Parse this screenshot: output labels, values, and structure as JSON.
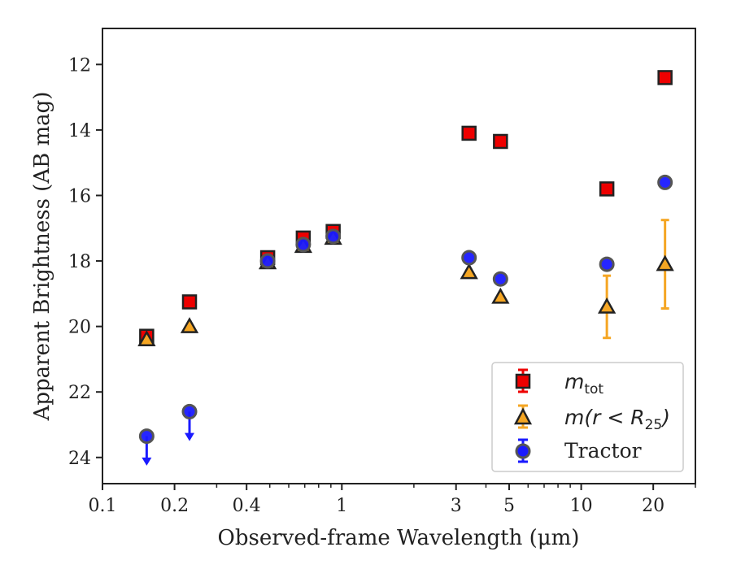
{
  "chart_data": {
    "type": "scatter",
    "xlabel": "Observed-frame Wavelength (μm)",
    "ylabel": "Apparent Brightness (AB mag)",
    "xscale": "log",
    "yaxis_inverted": true,
    "xlim": [
      0.1,
      30
    ],
    "ylim": [
      24.8,
      10.9
    ],
    "x_ticks": [
      {
        "value": 0.1,
        "label": "0.1"
      },
      {
        "value": 0.2,
        "label": "0.2"
      },
      {
        "value": 0.4,
        "label": "0.4"
      },
      {
        "value": 1,
        "label": "1"
      },
      {
        "value": 3,
        "label": "3"
      },
      {
        "value": 5,
        "label": "5"
      },
      {
        "value": 10,
        "label": "10"
      },
      {
        "value": 20,
        "label": "20"
      }
    ],
    "y_ticks": [
      {
        "value": 12,
        "label": "12"
      },
      {
        "value": 14,
        "label": "14"
      },
      {
        "value": 16,
        "label": "16"
      },
      {
        "value": 18,
        "label": "18"
      },
      {
        "value": 20,
        "label": "20"
      },
      {
        "value": 22,
        "label": "22"
      },
      {
        "value": 24,
        "label": "24"
      }
    ],
    "grid": false,
    "legend_position": "bottom-right",
    "series": [
      {
        "name": "m_tot",
        "marker": "square",
        "color": "#ee0000",
        "points": [
          {
            "x": 0.153,
            "y": 20.3
          },
          {
            "x": 0.231,
            "y": 19.25
          },
          {
            "x": 0.49,
            "y": 17.9
          },
          {
            "x": 0.69,
            "y": 17.3
          },
          {
            "x": 0.92,
            "y": 17.1
          },
          {
            "x": 3.4,
            "y": 14.1
          },
          {
            "x": 4.6,
            "y": 14.35
          },
          {
            "x": 12.8,
            "y": 15.8
          },
          {
            "x": 22.4,
            "y": 12.4
          }
        ]
      },
      {
        "name": "m(r<R25)",
        "marker": "triangle",
        "color": "#f5a623",
        "points": [
          {
            "x": 0.153,
            "y": 20.4
          },
          {
            "x": 0.231,
            "y": 20.0
          },
          {
            "x": 0.49,
            "y": 18.05
          },
          {
            "x": 0.69,
            "y": 17.55
          },
          {
            "x": 0.92,
            "y": 17.3
          },
          {
            "x": 3.4,
            "y": 18.35
          },
          {
            "x": 4.6,
            "y": 19.1
          },
          {
            "x": 12.8,
            "y": 19.4,
            "err": 0.95
          },
          {
            "x": 22.4,
            "y": 18.1,
            "err": 1.35
          }
        ]
      },
      {
        "name": "Tractor",
        "marker": "circle",
        "color": "#1a1aff",
        "points": [
          {
            "x": 0.153,
            "y": 23.35,
            "upper_limit": true
          },
          {
            "x": 0.231,
            "y": 22.6,
            "upper_limit": true
          },
          {
            "x": 0.49,
            "y": 18.0
          },
          {
            "x": 0.69,
            "y": 17.5
          },
          {
            "x": 0.92,
            "y": 17.25
          },
          {
            "x": 3.4,
            "y": 17.9
          },
          {
            "x": 4.6,
            "y": 18.55
          },
          {
            "x": 12.8,
            "y": 18.1
          },
          {
            "x": 22.4,
            "y": 15.6
          }
        ]
      }
    ]
  },
  "legend": {
    "mtot_main": "m",
    "mtot_sub": "tot",
    "mr_label": "m(r < R",
    "mr_sub": "25",
    "mr_close": ")",
    "tractor_label": "Tractor"
  }
}
